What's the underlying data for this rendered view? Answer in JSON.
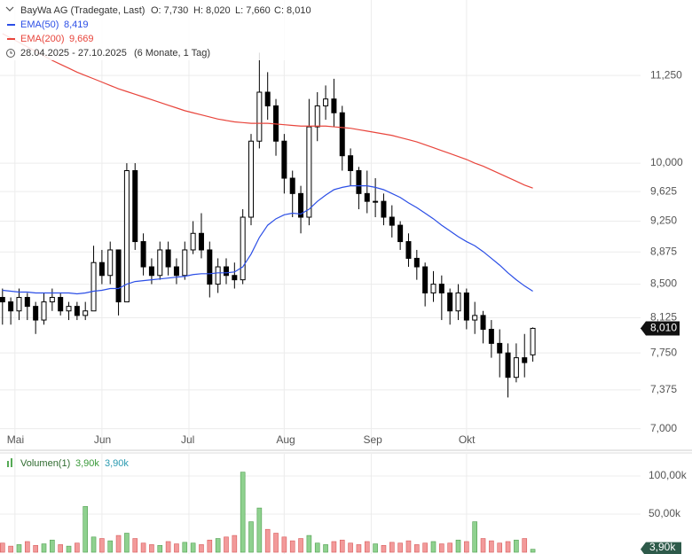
{
  "chart_data": {
    "type": "candlestick",
    "title": "BayWa AG (Tradegate, Last)",
    "header": {
      "open": "O: 7,730",
      "high": "H: 8,020",
      "low": "L: 7,660",
      "close": "C: 8,010",
      "period": "28.04.2025 - 27.10.2025",
      "span": "(6 Monate, 1 Tag)",
      "ema50": "8,419",
      "ema200": "9,669",
      "volume_a": "3,90k",
      "volume_b": "3,90k"
    },
    "log_scale": true,
    "grid": true,
    "xlim": [
      -0.6,
      154
    ],
    "xticks": [
      {
        "value": 3,
        "label": "Mai"
      },
      {
        "value": 24,
        "label": "Jun"
      },
      {
        "value": 45,
        "label": "Jul"
      },
      {
        "value": 68,
        "label": "Aug"
      },
      {
        "value": 89,
        "label": "Sep"
      },
      {
        "value": 112,
        "label": "Okt"
      }
    ],
    "ylim": [
      6.8,
      12.45
    ],
    "yticks": [
      {
        "value": 7,
        "label": "7,000"
      },
      {
        "value": 7.375,
        "label": "7,375"
      },
      {
        "value": 7.75,
        "label": "7,750"
      },
      {
        "value": 8.125,
        "label": "8,125"
      },
      {
        "value": 8.5,
        "label": "8,500"
      },
      {
        "value": 8.875,
        "label": "8,875"
      },
      {
        "value": 9.25,
        "label": "9,250"
      },
      {
        "value": 9.625,
        "label": "9,625"
      },
      {
        "value": 10,
        "label": "10,000"
      },
      {
        "value": 11.25,
        "label": "11,250"
      }
    ],
    "y2lim": [
      -2.3,
      129
    ],
    "y2ticks": [
      {
        "value": 50,
        "label": "50,00k"
      },
      {
        "value": 100,
        "label": "100,00k"
      }
    ],
    "last_price": {
      "value": 8.01,
      "label": "8,010"
    },
    "last_volume": {
      "value": 3.9,
      "label": "3,90k"
    },
    "x": [
      0,
      2,
      4,
      6,
      8,
      10,
      12,
      14,
      16,
      18,
      20,
      22,
      24,
      26,
      28,
      30,
      32,
      34,
      36,
      38,
      40,
      42,
      44,
      46,
      48,
      50,
      52,
      54,
      56,
      58,
      60,
      62,
      64,
      66,
      68,
      70,
      72,
      74,
      76,
      78,
      80,
      82,
      84,
      86,
      88,
      90,
      92,
      94,
      96,
      98,
      100,
      102,
      104,
      106,
      108,
      110,
      112,
      114,
      116,
      118,
      120,
      122,
      124,
      126,
      128
    ],
    "series": [
      {
        "name": "BayWa AG (Tradegate, Last)",
        "color": "#000000",
        "values": [
          [
            8.35,
            8.45,
            8.05,
            8.3
          ],
          [
            8.3,
            8.35,
            8.05,
            8.2
          ],
          [
            8.2,
            8.45,
            8.1,
            8.35
          ],
          [
            8.35,
            8.4,
            8.1,
            8.25
          ],
          [
            8.25,
            8.3,
            7.95,
            8.1
          ],
          [
            8.1,
            8.4,
            8.05,
            8.3
          ],
          [
            8.3,
            8.45,
            8.2,
            8.35
          ],
          [
            8.35,
            8.4,
            8.15,
            8.2
          ],
          [
            8.2,
            8.3,
            8.1,
            8.25
          ],
          [
            8.25,
            8.3,
            8.1,
            8.15
          ],
          [
            8.15,
            8.3,
            8.1,
            8.2
          ],
          [
            8.2,
            8.95,
            8.2,
            8.75
          ],
          [
            8.75,
            8.9,
            8.5,
            8.6
          ],
          [
            8.6,
            9.0,
            8.5,
            8.9
          ],
          [
            8.9,
            8.9,
            8.15,
            8.3
          ],
          [
            8.3,
            10.0,
            8.3,
            9.9
          ],
          [
            9.9,
            10.0,
            8.9,
            9.0
          ],
          [
            9.0,
            9.1,
            8.6,
            8.7
          ],
          [
            8.7,
            8.8,
            8.5,
            8.6
          ],
          [
            8.6,
            9.0,
            8.55,
            8.9
          ],
          [
            8.9,
            9.0,
            8.6,
            8.7
          ],
          [
            8.7,
            8.8,
            8.5,
            8.6
          ],
          [
            8.6,
            9.0,
            8.55,
            8.9
          ],
          [
            8.9,
            9.25,
            8.85,
            9.1
          ],
          [
            9.1,
            9.35,
            8.8,
            8.9
          ],
          [
            8.9,
            9.0,
            8.35,
            8.5
          ],
          [
            8.5,
            8.8,
            8.4,
            8.7
          ],
          [
            8.7,
            8.8,
            8.5,
            8.6
          ],
          [
            8.6,
            8.75,
            8.45,
            8.55
          ],
          [
            8.55,
            9.4,
            8.5,
            9.3
          ],
          [
            9.3,
            10.4,
            9.2,
            10.3
          ],
          [
            10.3,
            11.6,
            10.2,
            11.0
          ],
          [
            11.0,
            11.3,
            10.6,
            10.8
          ],
          [
            10.8,
            10.9,
            10.1,
            10.3
          ],
          [
            10.3,
            10.4,
            9.6,
            9.8
          ],
          [
            9.8,
            9.9,
            9.3,
            9.6
          ],
          [
            9.6,
            9.7,
            9.1,
            9.3
          ],
          [
            9.3,
            10.9,
            9.2,
            10.5
          ],
          [
            10.5,
            11.0,
            10.3,
            10.8
          ],
          [
            10.8,
            11.1,
            10.6,
            10.9
          ],
          [
            10.9,
            11.2,
            10.5,
            10.7
          ],
          [
            10.7,
            10.8,
            9.9,
            10.1
          ],
          [
            10.1,
            10.2,
            9.7,
            9.9
          ],
          [
            9.9,
            9.95,
            9.4,
            9.6
          ],
          [
            9.6,
            9.9,
            9.35,
            9.5
          ],
          [
            9.5,
            9.8,
            9.3,
            9.5
          ],
          [
            9.5,
            9.6,
            9.2,
            9.3
          ],
          [
            9.3,
            9.45,
            9.05,
            9.2
          ],
          [
            9.2,
            9.25,
            8.9,
            9.0
          ],
          [
            9.0,
            9.1,
            8.7,
            8.8
          ],
          [
            8.8,
            8.9,
            8.55,
            8.7
          ],
          [
            8.7,
            8.75,
            8.25,
            8.4
          ],
          [
            8.4,
            8.65,
            8.3,
            8.5
          ],
          [
            8.5,
            8.6,
            8.1,
            8.4
          ],
          [
            8.4,
            8.45,
            8.05,
            8.2
          ],
          [
            8.2,
            8.5,
            8.1,
            8.4
          ],
          [
            8.4,
            8.45,
            8.0,
            8.1
          ],
          [
            8.1,
            8.3,
            7.95,
            8.15
          ],
          [
            8.15,
            8.2,
            7.85,
            8.0
          ],
          [
            8.0,
            8.1,
            7.7,
            7.85
          ],
          [
            7.85,
            8.0,
            7.5,
            7.75
          ],
          [
            7.75,
            7.85,
            7.3,
            7.5
          ],
          [
            7.5,
            7.85,
            7.45,
            7.7
          ],
          [
            7.7,
            7.95,
            7.5,
            7.65
          ],
          [
            7.73,
            8.02,
            7.66,
            8.01
          ]
        ]
      },
      {
        "name": "EMA(50)",
        "color": "#2b4ee6",
        "values": [
          8.43,
          8.42,
          8.41,
          8.41,
          8.4,
          8.4,
          8.4,
          8.4,
          8.4,
          8.39,
          8.4,
          8.42,
          8.43,
          8.45,
          8.45,
          8.5,
          8.53,
          8.54,
          8.55,
          8.56,
          8.57,
          8.58,
          8.59,
          8.61,
          8.62,
          8.62,
          8.63,
          8.63,
          8.64,
          8.7,
          8.85,
          9.05,
          9.2,
          9.28,
          9.33,
          9.35,
          9.34,
          9.4,
          9.5,
          9.58,
          9.65,
          9.68,
          9.7,
          9.7,
          9.7,
          9.68,
          9.65,
          9.6,
          9.55,
          9.48,
          9.42,
          9.35,
          9.28,
          9.2,
          9.13,
          9.06,
          9.0,
          8.95,
          8.88,
          8.8,
          8.72,
          8.63,
          8.55,
          8.48,
          8.42
        ]
      },
      {
        "name": "EMA(200)",
        "color": "#e8453c",
        "values": [
          11.9,
          11.83,
          11.76,
          11.69,
          11.62,
          11.55,
          11.48,
          11.42,
          11.36,
          11.3,
          11.25,
          11.2,
          11.15,
          11.1,
          11.05,
          11.01,
          10.97,
          10.93,
          10.89,
          10.85,
          10.81,
          10.77,
          10.73,
          10.7,
          10.67,
          10.64,
          10.61,
          10.59,
          10.57,
          10.56,
          10.55,
          10.55,
          10.55,
          10.54,
          10.53,
          10.52,
          10.51,
          10.51,
          10.51,
          10.51,
          10.5,
          10.49,
          10.48,
          10.46,
          10.44,
          10.42,
          10.4,
          10.38,
          10.35,
          10.32,
          10.29,
          10.25,
          10.21,
          10.17,
          10.13,
          10.09,
          10.05,
          10.0,
          9.96,
          9.91,
          9.86,
          9.81,
          9.76,
          9.71,
          9.67
        ]
      },
      {
        "name": "Volumen(1)",
        "axis": "y2",
        "color": "#8fd18f",
        "values": [
          12,
          8,
          10,
          14,
          9,
          11,
          16,
          10,
          8,
          12,
          60,
          20,
          18,
          15,
          22,
          25,
          18,
          12,
          10,
          9,
          14,
          11,
          13,
          12,
          10,
          16,
          18,
          20,
          22,
          105,
          40,
          58,
          30,
          25,
          20,
          15,
          18,
          22,
          12,
          10,
          14,
          16,
          12,
          10,
          14,
          11,
          9,
          13,
          12,
          15,
          10,
          12,
          14,
          11,
          12,
          16,
          14,
          40,
          18,
          15,
          12,
          14,
          16,
          18,
          3.9
        ]
      }
    ]
  }
}
